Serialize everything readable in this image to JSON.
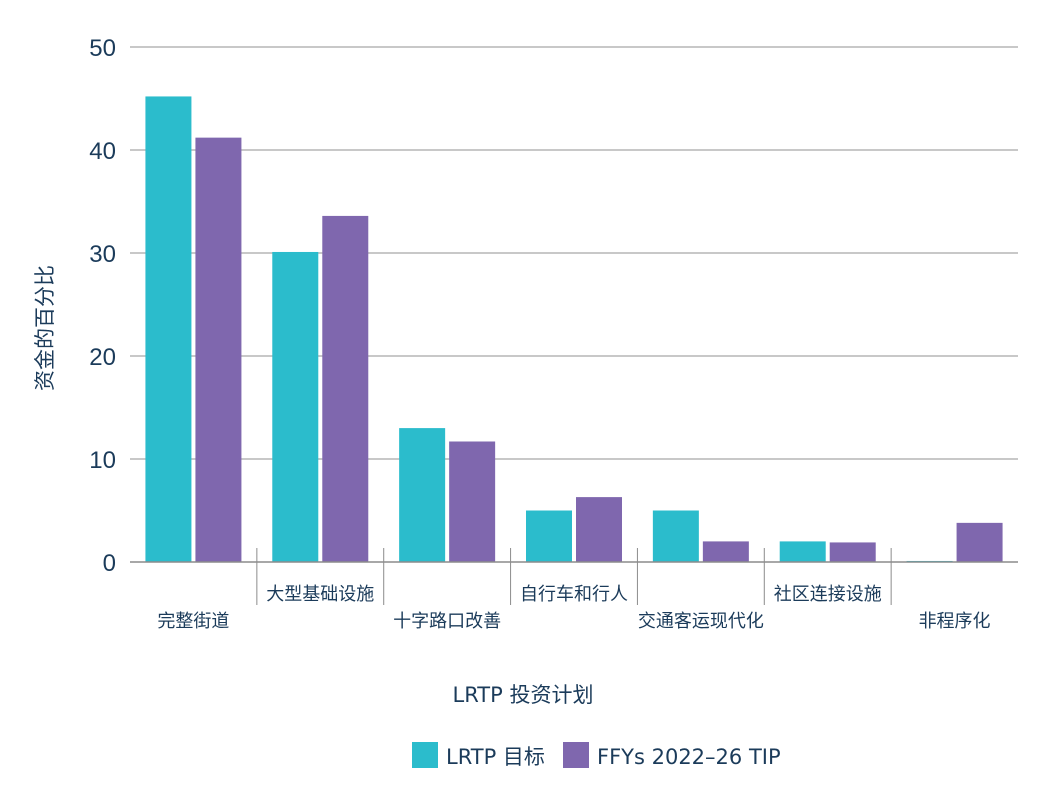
{
  "chart_data": {
    "type": "bar",
    "categories": [
      "完整街道",
      "大型基础设施",
      "十字路口改善",
      "自行车和行人",
      "交通客运现代化",
      "社区连接设施",
      "非程序化"
    ],
    "series": [
      {
        "name": "LRTP 目标",
        "color": "#2bbccc",
        "values": [
          45.2,
          30.1,
          13.0,
          5.0,
          5.0,
          2.0,
          0.1
        ]
      },
      {
        "name": "FFYs 2022–26 TIP",
        "color": "#7f67ae",
        "values": [
          41.2,
          33.6,
          11.7,
          6.3,
          2.0,
          1.9,
          3.8
        ]
      }
    ],
    "ylim": [
      0,
      50
    ],
    "yticks": [
      "0",
      "10",
      "20",
      "30",
      "40",
      "50"
    ],
    "xlabel": "LRTP 投资计划",
    "ylabel": "资金的百分比",
    "grid": true,
    "legend_position": "bottom"
  },
  "colors": {
    "text": "#1b3b5a",
    "grid": "#a6a6a6",
    "axis": "#8c8c8c"
  }
}
